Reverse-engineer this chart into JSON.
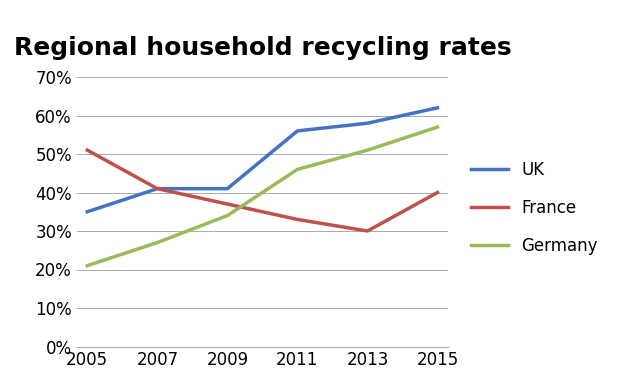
{
  "title": "Regional household recycling rates",
  "title_fontsize": 18,
  "title_fontweight": "bold",
  "years": [
    2005,
    2007,
    2009,
    2011,
    2013,
    2015
  ],
  "series": {
    "UK": {
      "values": [
        0.35,
        0.41,
        0.41,
        0.56,
        0.58,
        0.62
      ],
      "color": "#4472C4",
      "linewidth": 2.5
    },
    "France": {
      "values": [
        0.51,
        0.41,
        0.37,
        0.33,
        0.3,
        0.4
      ],
      "color": "#C0504D",
      "linewidth": 2.5
    },
    "Germany": {
      "values": [
        0.21,
        0.27,
        0.34,
        0.46,
        0.51,
        0.57
      ],
      "color": "#9BBB59",
      "linewidth": 2.5
    }
  },
  "ylim": [
    0.0,
    0.72
  ],
  "yticks": [
    0.0,
    0.1,
    0.2,
    0.3,
    0.4,
    0.5,
    0.6,
    0.7
  ],
  "xticks": [
    2005,
    2007,
    2009,
    2011,
    2013,
    2015
  ],
  "grid_color": "#AAAAAA",
  "grid_linestyle": "-",
  "grid_linewidth": 0.7,
  "background_color": "#FFFFFF",
  "legend_fontsize": 12,
  "tick_fontsize": 12
}
